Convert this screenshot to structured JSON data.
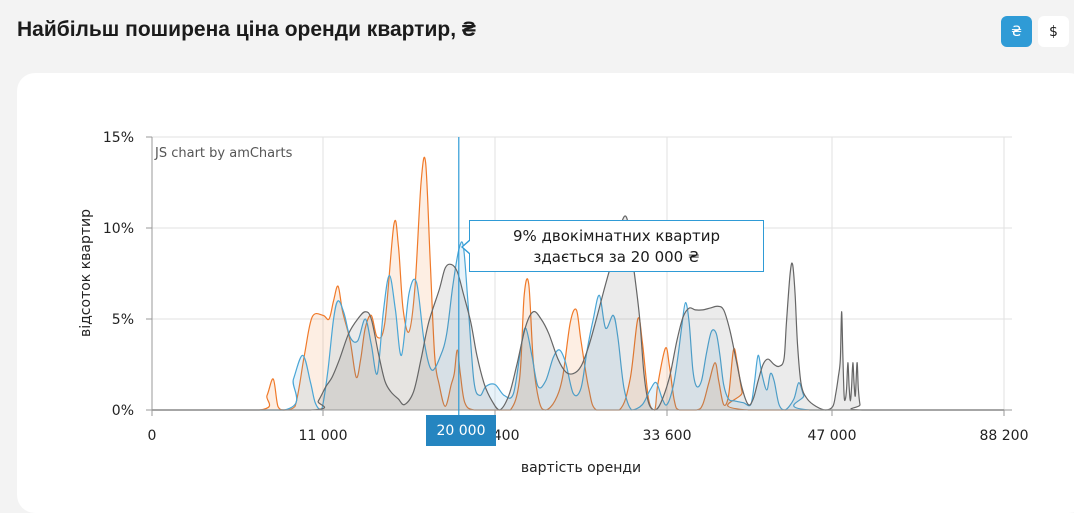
{
  "header": {
    "title": "Найбільш поширена ціна оренди квартир, ₴"
  },
  "currency": {
    "uah_label": "₴",
    "usd_label": "$",
    "selected": "uah"
  },
  "credit": "JS chart by amCharts",
  "tooltip": {
    "line1": "9% двокімнатних квартир",
    "line2": "здається за 20 000 ₴"
  },
  "cursor_label": "20 000",
  "chart_data": {
    "type": "area",
    "xlabel": "вартість оренди",
    "ylabel": "відсоток квартир",
    "x_ticks": [
      {
        "value": 0,
        "label": "0"
      },
      {
        "value": 11000,
        "label": "11 000"
      },
      {
        "value": 22400,
        "label": "22 400"
      },
      {
        "value": 33600,
        "label": "33 600"
      },
      {
        "value": 47000,
        "label": "47 000"
      },
      {
        "value": 88200,
        "label": "88 200"
      }
    ],
    "y_ticks": [
      {
        "value": 0,
        "label": "0%"
      },
      {
        "value": 5,
        "label": "5%"
      },
      {
        "value": 10,
        "label": "10%"
      },
      {
        "value": 15,
        "label": "15%"
      }
    ],
    "ylim": [
      0,
      15
    ],
    "cursor_x": 20000,
    "grid": true,
    "colors": {
      "orange": "#f07a2a",
      "blue": "#4aa6d6",
      "gray": "#666666"
    },
    "series": [
      {
        "color": "#f07a2a",
        "points": [
          [
            0,
            0
          ],
          [
            6900,
            0
          ],
          [
            7400,
            0.8
          ],
          [
            7800,
            1.7
          ],
          [
            8100,
            0.2
          ],
          [
            8500,
            0
          ],
          [
            9200,
            0.2
          ],
          [
            9800,
            3.0
          ],
          [
            10300,
            5.1
          ],
          [
            11000,
            5.2
          ],
          [
            11400,
            5.0
          ],
          [
            11700,
            6.0
          ],
          [
            12000,
            6.8
          ],
          [
            12300,
            5.4
          ],
          [
            12800,
            3.8
          ],
          [
            13200,
            1.8
          ],
          [
            13500,
            2.8
          ],
          [
            13800,
            4.5
          ],
          [
            14200,
            5.2
          ],
          [
            14600,
            4.0
          ],
          [
            15100,
            4.8
          ],
          [
            15700,
            10.2
          ],
          [
            16000,
            9.0
          ],
          [
            16300,
            5.6
          ],
          [
            16700,
            4.3
          ],
          [
            17100,
            6.8
          ],
          [
            17500,
            12.5
          ],
          [
            17800,
            13.6
          ],
          [
            18100,
            8.3
          ],
          [
            18400,
            3.0
          ],
          [
            18700,
            1.4
          ],
          [
            19100,
            0.2
          ],
          [
            19500,
            1.4
          ],
          [
            19700,
            2.0
          ],
          [
            19900,
            3.3
          ],
          [
            20100,
            2.0
          ],
          [
            20400,
            0.4
          ],
          [
            21000,
            0
          ],
          [
            22400,
            0
          ],
          [
            23400,
            0
          ],
          [
            24000,
            1.7
          ],
          [
            24300,
            6.3
          ],
          [
            24600,
            6.9
          ],
          [
            24900,
            2.6
          ],
          [
            25300,
            0.4
          ],
          [
            25700,
            0
          ],
          [
            26300,
            0.5
          ],
          [
            26800,
            1.8
          ],
          [
            27300,
            4.8
          ],
          [
            27700,
            5.5
          ],
          [
            28000,
            3.8
          ],
          [
            28500,
            1.2
          ],
          [
            29000,
            0
          ],
          [
            30500,
            0
          ],
          [
            31200,
            1.7
          ],
          [
            31700,
            5.0
          ],
          [
            32000,
            3.7
          ],
          [
            32400,
            0.6
          ],
          [
            32800,
            0
          ],
          [
            33000,
            1.4
          ],
          [
            33500,
            3.4
          ],
          [
            33800,
            2.4
          ],
          [
            34200,
            0.5
          ],
          [
            34600,
            0
          ],
          [
            36000,
            0
          ],
          [
            36500,
            0.3
          ],
          [
            37000,
            1.5
          ],
          [
            37500,
            2.6
          ],
          [
            37800,
            1.6
          ],
          [
            38200,
            0.3
          ],
          [
            38600,
            0.8
          ],
          [
            39000,
            3.3
          ],
          [
            39300,
            2.6
          ],
          [
            39700,
            1.0
          ],
          [
            40200,
            0
          ],
          [
            88200,
            0
          ]
        ]
      },
      {
        "color": "#4aa6d6",
        "points": [
          [
            0,
            0
          ],
          [
            8500,
            0
          ],
          [
            9100,
            1.7
          ],
          [
            9700,
            3.0
          ],
          [
            10200,
            1.5
          ],
          [
            10500,
            0.4
          ],
          [
            10900,
            0
          ],
          [
            11300,
            2.0
          ],
          [
            11700,
            5.0
          ],
          [
            12000,
            6.0
          ],
          [
            12400,
            5.3
          ],
          [
            12800,
            4.0
          ],
          [
            13300,
            3.8
          ],
          [
            13800,
            5.0
          ],
          [
            14200,
            3.6
          ],
          [
            14600,
            2.0
          ],
          [
            15000,
            5.4
          ],
          [
            15400,
            7.4
          ],
          [
            15800,
            5.5
          ],
          [
            16200,
            3.0
          ],
          [
            16700,
            6.4
          ],
          [
            17200,
            7.0
          ],
          [
            17700,
            3.8
          ],
          [
            18200,
            2.2
          ],
          [
            18800,
            3.0
          ],
          [
            19200,
            4.2
          ],
          [
            19600,
            6.8
          ],
          [
            20000,
            8.8
          ],
          [
            20300,
            9.0
          ],
          [
            20600,
            6.0
          ],
          [
            21000,
            1.6
          ],
          [
            21400,
            0.8
          ],
          [
            21800,
            1.3
          ],
          [
            22400,
            1.4
          ],
          [
            23000,
            0.8
          ],
          [
            23600,
            0.9
          ],
          [
            24100,
            3.5
          ],
          [
            24400,
            4.5
          ],
          [
            24800,
            3.0
          ],
          [
            25200,
            1.3
          ],
          [
            25700,
            1.6
          ],
          [
            26200,
            2.9
          ],
          [
            26600,
            3.3
          ],
          [
            27000,
            2.6
          ],
          [
            27500,
            0.9
          ],
          [
            28000,
            1.2
          ],
          [
            28400,
            3.3
          ],
          [
            28800,
            5.0
          ],
          [
            29200,
            6.3
          ],
          [
            29600,
            4.5
          ],
          [
            30100,
            5.2
          ],
          [
            30400,
            4.0
          ],
          [
            30800,
            1.2
          ],
          [
            31300,
            0
          ],
          [
            32000,
            0.3
          ],
          [
            32500,
            1.1
          ],
          [
            32900,
            1.5
          ],
          [
            33300,
            0.6
          ],
          [
            33600,
            0.3
          ],
          [
            34100,
            1.3
          ],
          [
            34500,
            3.0
          ],
          [
            34800,
            4.6
          ],
          [
            35100,
            5.9
          ],
          [
            35400,
            4.8
          ],
          [
            35700,
            2.2
          ],
          [
            36000,
            1.3
          ],
          [
            36400,
            1.6
          ],
          [
            36800,
            3.1
          ],
          [
            37200,
            4.3
          ],
          [
            37600,
            4.2
          ],
          [
            37900,
            3.0
          ],
          [
            38200,
            1.4
          ],
          [
            38600,
            0.6
          ],
          [
            39100,
            0.5
          ],
          [
            39800,
            0.4
          ],
          [
            40400,
            0.3
          ],
          [
            40700,
            1.5
          ],
          [
            41000,
            3.0
          ],
          [
            41300,
            2.0
          ],
          [
            41700,
            1.1
          ],
          [
            42000,
            2.0
          ],
          [
            42300,
            1.6
          ],
          [
            42700,
            0.3
          ],
          [
            43200,
            0
          ],
          [
            43900,
            0.6
          ],
          [
            44300,
            1.5
          ],
          [
            44700,
            0.8
          ],
          [
            45200,
            0
          ],
          [
            88200,
            0
          ]
        ]
      },
      {
        "color": "#666666",
        "points": [
          [
            0,
            0
          ],
          [
            10200,
            0
          ],
          [
            10700,
            0.5
          ],
          [
            11200,
            1.3
          ],
          [
            11600,
            1.8
          ],
          [
            12100,
            2.8
          ],
          [
            12700,
            4.2
          ],
          [
            13300,
            5.0
          ],
          [
            13800,
            5.4
          ],
          [
            14200,
            5.0
          ],
          [
            14700,
            3.0
          ],
          [
            15100,
            1.6
          ],
          [
            15500,
            1.0
          ],
          [
            16000,
            0.6
          ],
          [
            16400,
            0.3
          ],
          [
            17000,
            1.0
          ],
          [
            17500,
            2.8
          ],
          [
            18000,
            4.8
          ],
          [
            18700,
            6.6
          ],
          [
            19100,
            7.8
          ],
          [
            19500,
            8.0
          ],
          [
            19900,
            7.6
          ],
          [
            20300,
            6.4
          ],
          [
            20800,
            4.8
          ],
          [
            21200,
            3.0
          ],
          [
            21700,
            1.4
          ],
          [
            22200,
            0.5
          ],
          [
            22700,
            0
          ],
          [
            23300,
            0.8
          ],
          [
            23800,
            2.4
          ],
          [
            24400,
            4.6
          ],
          [
            24900,
            5.4
          ],
          [
            25400,
            5.0
          ],
          [
            25900,
            4.2
          ],
          [
            26500,
            2.8
          ],
          [
            27000,
            2.1
          ],
          [
            27500,
            2.0
          ],
          [
            28000,
            2.4
          ],
          [
            28500,
            3.5
          ],
          [
            29000,
            5.0
          ],
          [
            29500,
            6.6
          ],
          [
            29900,
            7.8
          ],
          [
            30200,
            8.5
          ],
          [
            30600,
            10.2
          ],
          [
            31000,
            10.5
          ],
          [
            31400,
            8.0
          ],
          [
            31800,
            5.2
          ],
          [
            32100,
            2.0
          ],
          [
            32400,
            0.4
          ],
          [
            32800,
            0
          ],
          [
            33200,
            0.4
          ],
          [
            33800,
            1.8
          ],
          [
            34400,
            3.8
          ],
          [
            34900,
            5.1
          ],
          [
            35400,
            5.6
          ],
          [
            35900,
            5.5
          ],
          [
            36500,
            5.5
          ],
          [
            37100,
            5.6
          ],
          [
            37700,
            5.7
          ],
          [
            38200,
            5.5
          ],
          [
            38700,
            4.4
          ],
          [
            39200,
            2.8
          ],
          [
            39700,
            1.2
          ],
          [
            40200,
            0.3
          ],
          [
            40600,
            0.6
          ],
          [
            41000,
            1.6
          ],
          [
            41400,
            2.5
          ],
          [
            41800,
            2.8
          ],
          [
            42300,
            2.5
          ],
          [
            42700,
            2.4
          ],
          [
            43100,
            2.8
          ],
          [
            43300,
            4.8
          ],
          [
            43600,
            7.5
          ],
          [
            43800,
            8.0
          ],
          [
            44000,
            6.4
          ],
          [
            44200,
            3.6
          ],
          [
            44500,
            1.4
          ],
          [
            45000,
            0.6
          ],
          [
            45700,
            0.2
          ],
          [
            46500,
            0
          ],
          [
            47200,
            0.2
          ],
          [
            47900,
            0.9
          ],
          [
            48500,
            1.8
          ],
          [
            49000,
            2.8
          ],
          [
            49300,
            5.4
          ],
          [
            49600,
            3.0
          ],
          [
            49900,
            0.8
          ],
          [
            50200,
            0.6
          ],
          [
            50500,
            1.2
          ],
          [
            50800,
            2.6
          ],
          [
            51100,
            1.3
          ],
          [
            51400,
            0.5
          ],
          [
            51700,
            1.3
          ],
          [
            52000,
            2.6
          ],
          [
            52300,
            1.4
          ],
          [
            52600,
            0.8
          ],
          [
            53000,
            2.6
          ],
          [
            53300,
            1.2
          ],
          [
            53700,
            0.3
          ],
          [
            54200,
            0
          ],
          [
            88200,
            0
          ]
        ]
      }
    ]
  }
}
